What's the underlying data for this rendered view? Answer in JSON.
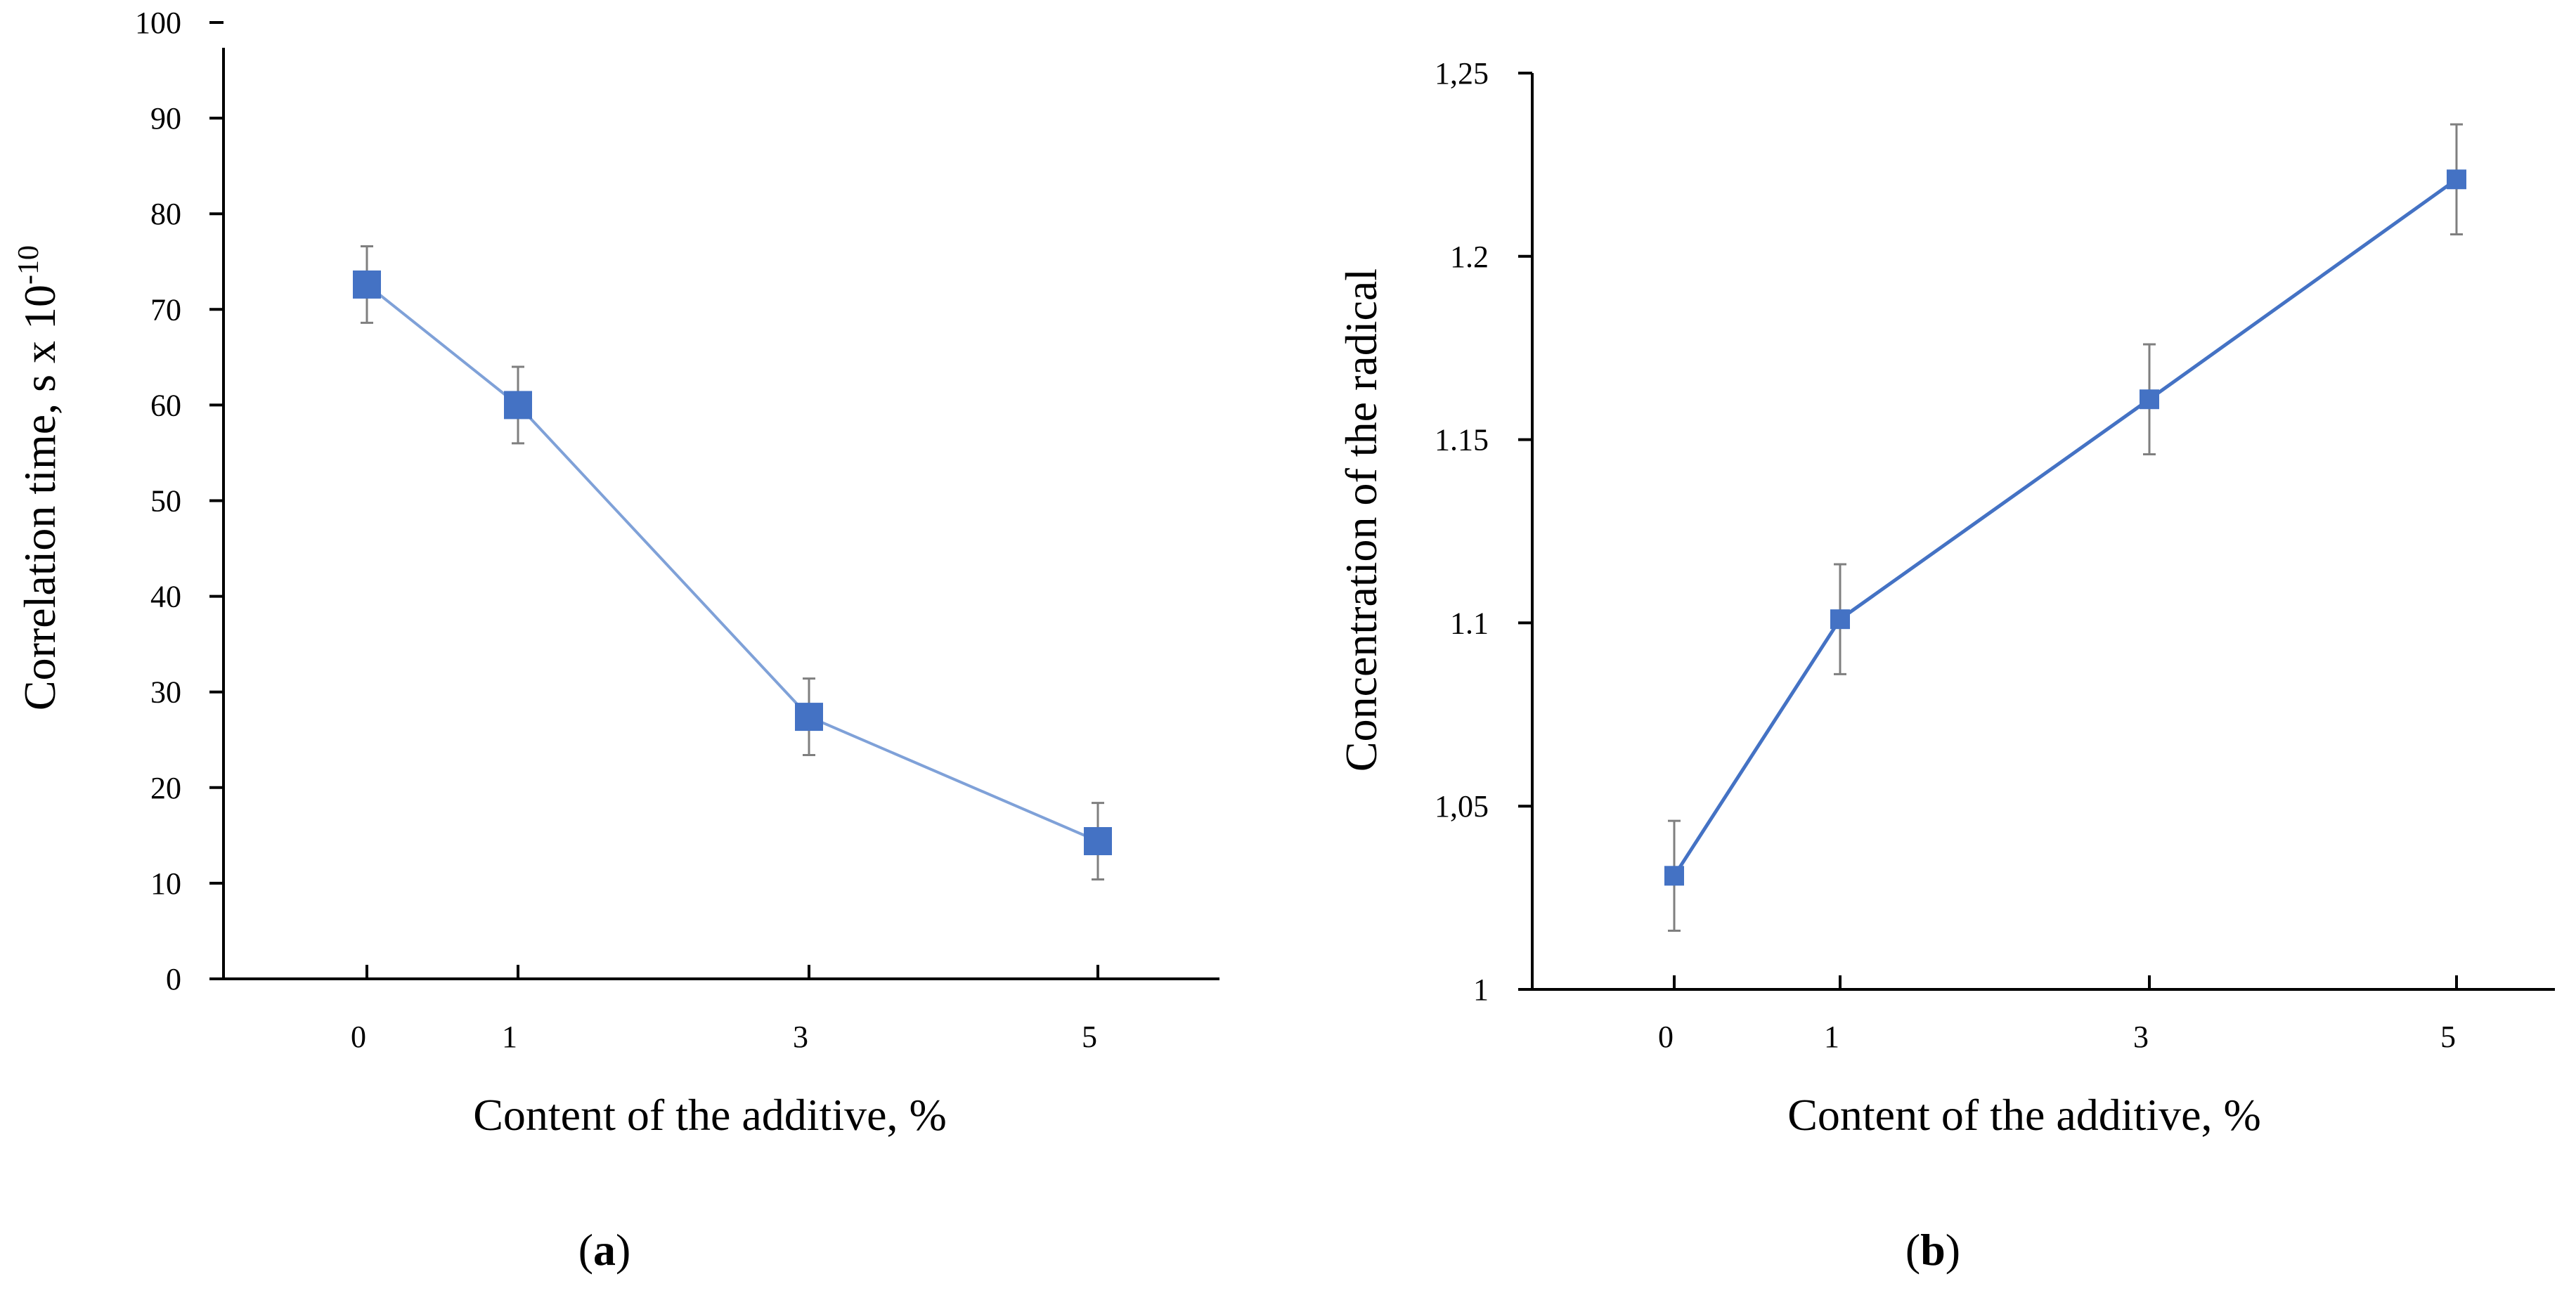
{
  "chart_data": [
    {
      "type": "line",
      "panel_label": "a",
      "xlabel": "Content of the additive, %",
      "ylabel_main": "Correlation time, s x 10",
      "ylabel_exponent": "-10",
      "categories": [
        "0",
        "1",
        "3",
        "5"
      ],
      "series": [
        {
          "values": [
            72.6,
            60,
            27.4,
            14.4
          ],
          "error": [
            4,
            4,
            4,
            4
          ],
          "color": "#4472c4",
          "line_color": "#7fa1d8"
        }
      ],
      "ylim": [
        0,
        100
      ],
      "y_ticks": [
        "0",
        "10",
        "20",
        "30",
        "40",
        "50",
        "60",
        "70",
        "80",
        "90",
        "100"
      ],
      "grid": false
    },
    {
      "type": "line",
      "panel_label": "b",
      "xlabel": "Content of the additive, %",
      "ylabel": "Concentration of the radical",
      "categories": [
        "0",
        "1",
        "3",
        "5"
      ],
      "series": [
        {
          "values": [
            1.031,
            1.101,
            1.161,
            1.221
          ],
          "error": [
            0.015,
            0.015,
            0.015,
            0.015
          ],
          "color": "#4472c4",
          "line_color": "#4472c4"
        }
      ],
      "ylim": [
        1,
        1.25
      ],
      "y_ticks": [
        "1",
        "1,05",
        "1.1",
        "1.15",
        "1.2",
        "1,25"
      ],
      "grid": false
    }
  ]
}
